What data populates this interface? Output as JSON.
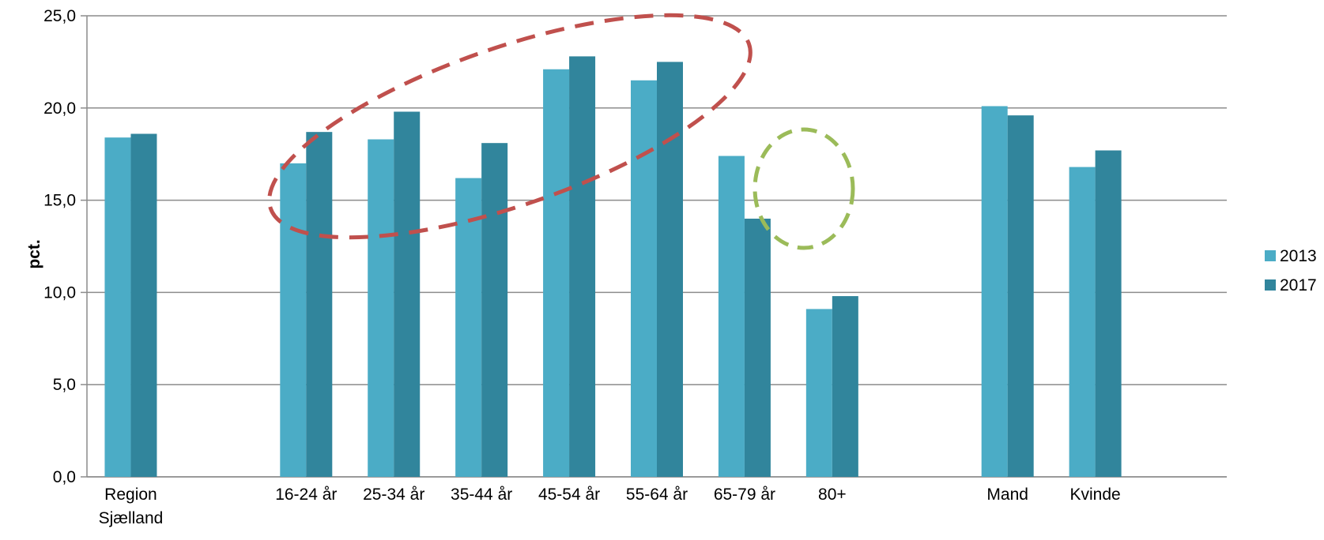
{
  "chart_data": {
    "type": "bar",
    "title": "",
    "xlabel": "",
    "ylabel": "pct.",
    "ylim": [
      0,
      25
    ],
    "yticks": [
      "0,0",
      "5,0",
      "10,0",
      "15,0",
      "20,0",
      "25,0"
    ],
    "grid": true,
    "legend_position": "right",
    "categories": [
      [
        "Region",
        "Sjælland"
      ],
      [
        "16-24 år"
      ],
      [
        "25-34 år"
      ],
      [
        "35-44 år"
      ],
      [
        "45-54 år"
      ],
      [
        "55-64 år"
      ],
      [
        "65-79 år"
      ],
      [
        "80+"
      ],
      [
        "Mand"
      ],
      [
        "Kvinde"
      ]
    ],
    "series": [
      {
        "name": "2013",
        "color": "#4bacc6",
        "values": [
          18.4,
          17.0,
          18.3,
          16.2,
          22.1,
          21.5,
          17.4,
          9.1,
          20.1,
          16.8
        ]
      },
      {
        "name": "2017",
        "color": "#31859c",
        "values": [
          18.6,
          18.7,
          19.8,
          18.1,
          22.8,
          22.5,
          14.0,
          9.8,
          19.6,
          17.7
        ]
      }
    ],
    "annotations": [
      {
        "shape": "dashed-ellipse",
        "color": "#c0504d",
        "around": [
          "16-24 år",
          "25-34 år",
          "35-44 år",
          "45-54 år",
          "55-64 år"
        ]
      },
      {
        "shape": "dashed-ellipse",
        "color": "#9bbb59",
        "around": [
          "65-79 år"
        ]
      }
    ]
  }
}
